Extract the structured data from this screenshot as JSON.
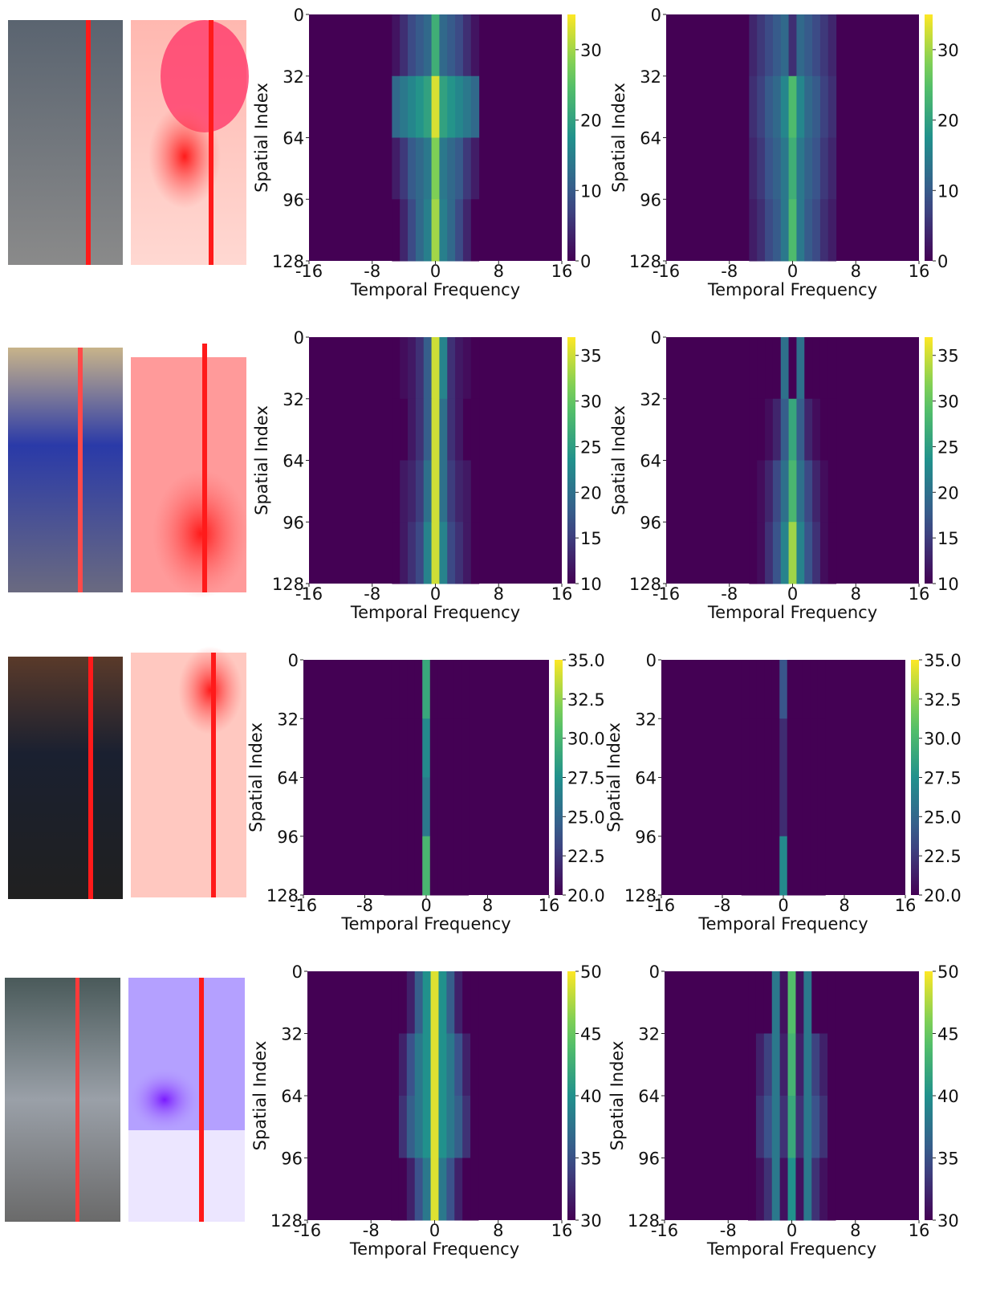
{
  "chart_data": [
    {
      "type": "heatmap",
      "colormap": "viridis",
      "xlabel": "Temporal Frequency",
      "ylabel": "Spatial Index",
      "xlim": [
        -16,
        16
      ],
      "xticks": [
        -16,
        -8,
        0,
        8,
        16
      ],
      "ylim": [
        0,
        128
      ],
      "yticks": [
        0,
        32,
        64,
        96,
        128
      ],
      "clim": [
        0,
        35
      ],
      "cticks": [
        0,
        10,
        20,
        30
      ],
      "x": [
        -5,
        -4,
        -3,
        -2,
        -1,
        0,
        1,
        2,
        3,
        4,
        5
      ],
      "values": [
        [
          2,
          5,
          8,
          10,
          12,
          22,
          12,
          10,
          8,
          5,
          2
        ],
        [
          12,
          14,
          16,
          18,
          20,
          33,
          20,
          18,
          16,
          14,
          12
        ],
        [
          3,
          6,
          10,
          12,
          14,
          28,
          14,
          12,
          10,
          6,
          3
        ],
        [
          0,
          4,
          8,
          12,
          15,
          30,
          15,
          12,
          8,
          4,
          0
        ]
      ]
    },
    {
      "type": "heatmap",
      "colormap": "viridis",
      "xlabel": "Temporal Frequency",
      "ylabel": "Spatial Index",
      "xlim": [
        -16,
        16
      ],
      "xticks": [
        -16,
        -8,
        0,
        8,
        16
      ],
      "ylim": [
        0,
        128
      ],
      "yticks": [
        0,
        32,
        64,
        96,
        128
      ],
      "clim": [
        0,
        35
      ],
      "cticks": [
        0,
        10,
        20,
        30
      ],
      "x": [
        -5,
        -4,
        -3,
        -2,
        -1,
        0,
        1,
        2,
        3,
        4,
        5
      ],
      "values": [
        [
          4,
          6,
          8,
          10,
          12,
          5,
          12,
          10,
          8,
          6,
          4
        ],
        [
          5,
          7,
          10,
          12,
          16,
          24,
          16,
          12,
          10,
          7,
          5
        ],
        [
          4,
          6,
          9,
          11,
          14,
          22,
          14,
          11,
          9,
          6,
          4
        ],
        [
          3,
          5,
          8,
          10,
          14,
          24,
          14,
          10,
          8,
          5,
          3
        ]
      ]
    },
    {
      "type": "heatmap",
      "colormap": "viridis",
      "xlabel": "Temporal Frequency",
      "ylabel": "Spatial Index",
      "xlim": [
        -16,
        16
      ],
      "xticks": [
        -16,
        -8,
        0,
        8,
        16
      ],
      "ylim": [
        0,
        128
      ],
      "yticks": [
        0,
        32,
        64,
        96,
        128
      ],
      "clim": [
        10,
        37
      ],
      "cticks": [
        10,
        15,
        20,
        25,
        30,
        35
      ],
      "x": [
        -5,
        -4,
        -3,
        -2,
        -1,
        0,
        1,
        2,
        3,
        4,
        5
      ],
      "values": [
        [
          10,
          11,
          12,
          14,
          18,
          35,
          22,
          14,
          12,
          11,
          10
        ],
        [
          10,
          10,
          12,
          14,
          18,
          35,
          20,
          14,
          12,
          10,
          10
        ],
        [
          10,
          12,
          13,
          15,
          20,
          35,
          20,
          15,
          13,
          12,
          10
        ],
        [
          10,
          12,
          14,
          16,
          22,
          35,
          22,
          16,
          14,
          12,
          10
        ]
      ]
    },
    {
      "type": "heatmap",
      "colormap": "viridis",
      "xlabel": "Temporal Frequency",
      "ylabel": "Spatial Index",
      "xlim": [
        -16,
        16
      ],
      "xticks": [
        -16,
        -8,
        0,
        8,
        16
      ],
      "ylim": [
        0,
        128
      ],
      "yticks": [
        0,
        32,
        64,
        96,
        128
      ],
      "clim": [
        10,
        37
      ],
      "cticks": [
        10,
        15,
        20,
        25,
        30,
        35
      ],
      "x": [
        -5,
        -4,
        -3,
        -2,
        -1,
        0,
        1,
        2,
        3,
        4,
        5
      ],
      "values": [
        [
          10,
          10,
          10,
          10,
          20,
          10,
          20,
          10,
          10,
          10,
          10
        ],
        [
          10,
          10,
          11,
          13,
          18,
          26,
          18,
          13,
          11,
          10,
          10
        ],
        [
          10,
          11,
          13,
          16,
          20,
          28,
          20,
          16,
          13,
          11,
          10
        ],
        [
          10,
          11,
          14,
          17,
          22,
          33,
          22,
          17,
          14,
          11,
          10
        ]
      ]
    },
    {
      "type": "heatmap",
      "colormap": "viridis",
      "xlabel": "Temporal Frequency",
      "ylabel": "Spatial Index",
      "xlim": [
        -16,
        16
      ],
      "xticks": [
        -16,
        -8,
        0,
        8,
        16
      ],
      "ylim": [
        0,
        128
      ],
      "yticks": [
        0,
        32,
        64,
        96,
        128
      ],
      "clim": [
        20,
        35
      ],
      "cticks": [
        {
          "value": 20,
          "label": "20.0"
        },
        {
          "value": 22.5,
          "label": "22.5"
        },
        {
          "value": 25,
          "label": "25.0"
        },
        {
          "value": 27.5,
          "label": "27.5"
        },
        {
          "value": 30,
          "label": "30.0"
        },
        {
          "value": 32.5,
          "label": "32.5"
        },
        {
          "value": 35,
          "label": "35.0"
        }
      ],
      "x": [
        -5,
        -4,
        -3,
        -2,
        -1,
        0,
        1,
        2,
        3,
        4,
        5
      ],
      "values": [
        [
          20,
          20,
          20,
          20,
          20,
          29,
          20,
          20,
          20,
          20,
          20
        ],
        [
          20,
          20,
          20,
          20,
          20,
          27,
          20,
          20,
          20,
          20,
          20
        ],
        [
          20,
          20,
          20,
          20,
          20,
          26,
          20,
          20,
          20,
          20,
          20
        ],
        [
          20,
          20,
          20,
          20,
          20,
          30,
          20,
          20,
          20,
          20,
          20
        ]
      ]
    },
    {
      "type": "heatmap",
      "colormap": "viridis",
      "xlabel": "Temporal Frequency",
      "ylabel": "Spatial Index",
      "xlim": [
        -16,
        16
      ],
      "xticks": [
        -16,
        -8,
        0,
        8,
        16
      ],
      "ylim": [
        0,
        128
      ],
      "yticks": [
        0,
        32,
        64,
        96,
        128
      ],
      "clim": [
        20,
        35
      ],
      "cticks": [
        {
          "value": 20,
          "label": "20.0"
        },
        {
          "value": 22.5,
          "label": "22.5"
        },
        {
          "value": 25,
          "label": "25.0"
        },
        {
          "value": 27.5,
          "label": "27.5"
        },
        {
          "value": 30,
          "label": "30.0"
        },
        {
          "value": 32.5,
          "label": "32.5"
        },
        {
          "value": 35,
          "label": "35.0"
        }
      ],
      "x": [
        -5,
        -4,
        -3,
        -2,
        -1,
        0,
        1,
        2,
        3,
        4,
        5
      ],
      "values": [
        [
          20,
          20,
          20,
          20,
          20,
          24,
          20,
          20,
          20,
          20,
          20
        ],
        [
          20,
          20,
          20,
          20,
          20,
          22,
          20,
          20,
          20,
          20,
          20
        ],
        [
          20,
          20,
          20,
          20,
          20,
          22,
          20,
          20,
          20,
          20,
          20
        ],
        [
          20,
          20,
          20,
          20,
          20,
          27,
          20,
          20,
          20,
          20,
          20
        ]
      ]
    },
    {
      "type": "heatmap",
      "colormap": "viridis",
      "xlabel": "Temporal Frequency",
      "ylabel": "Spatial Index",
      "xlim": [
        -16,
        16
      ],
      "xticks": [
        -16,
        -8,
        0,
        8,
        16
      ],
      "ylim": [
        0,
        128
      ],
      "yticks": [
        0,
        32,
        64,
        96,
        128
      ],
      "clim": [
        30,
        50
      ],
      "cticks": [
        30,
        35,
        40,
        45,
        50
      ],
      "x": [
        -5,
        -4,
        -3,
        -2,
        -1,
        0,
        1,
        2,
        3,
        4,
        5
      ],
      "values": [
        [
          30,
          30,
          32,
          36,
          40,
          49,
          40,
          36,
          32,
          30,
          30
        ],
        [
          30,
          32,
          35,
          38,
          40,
          49,
          40,
          38,
          35,
          32,
          30
        ],
        [
          30,
          33,
          36,
          38,
          40,
          49,
          40,
          38,
          36,
          33,
          30
        ],
        [
          30,
          30,
          32,
          35,
          38,
          49,
          38,
          35,
          32,
          30,
          30
        ]
      ]
    },
    {
      "type": "heatmap",
      "colormap": "viridis",
      "xlabel": "Temporal Frequency",
      "ylabel": "Spatial Index",
      "xlim": [
        -16,
        16
      ],
      "xticks": [
        -16,
        -8,
        0,
        8,
        16
      ],
      "ylim": [
        0,
        128
      ],
      "yticks": [
        0,
        32,
        64,
        96,
        128
      ],
      "clim": [
        30,
        50
      ],
      "cticks": [
        30,
        35,
        40,
        45,
        50
      ],
      "x": [
        -5,
        -4,
        -3,
        -2,
        -1,
        0,
        1,
        2,
        3,
        4,
        5
      ],
      "values": [
        [
          30,
          30,
          30,
          38,
          31,
          44,
          31,
          38,
          30,
          30,
          30
        ],
        [
          30,
          32,
          34,
          38,
          32,
          43,
          32,
          38,
          34,
          32,
          30
        ],
        [
          30,
          33,
          35,
          38,
          33,
          42,
          33,
          38,
          35,
          33,
          30
        ],
        [
          30,
          31,
          33,
          38,
          31,
          40,
          31,
          38,
          33,
          31,
          30
        ]
      ]
    }
  ]
}
